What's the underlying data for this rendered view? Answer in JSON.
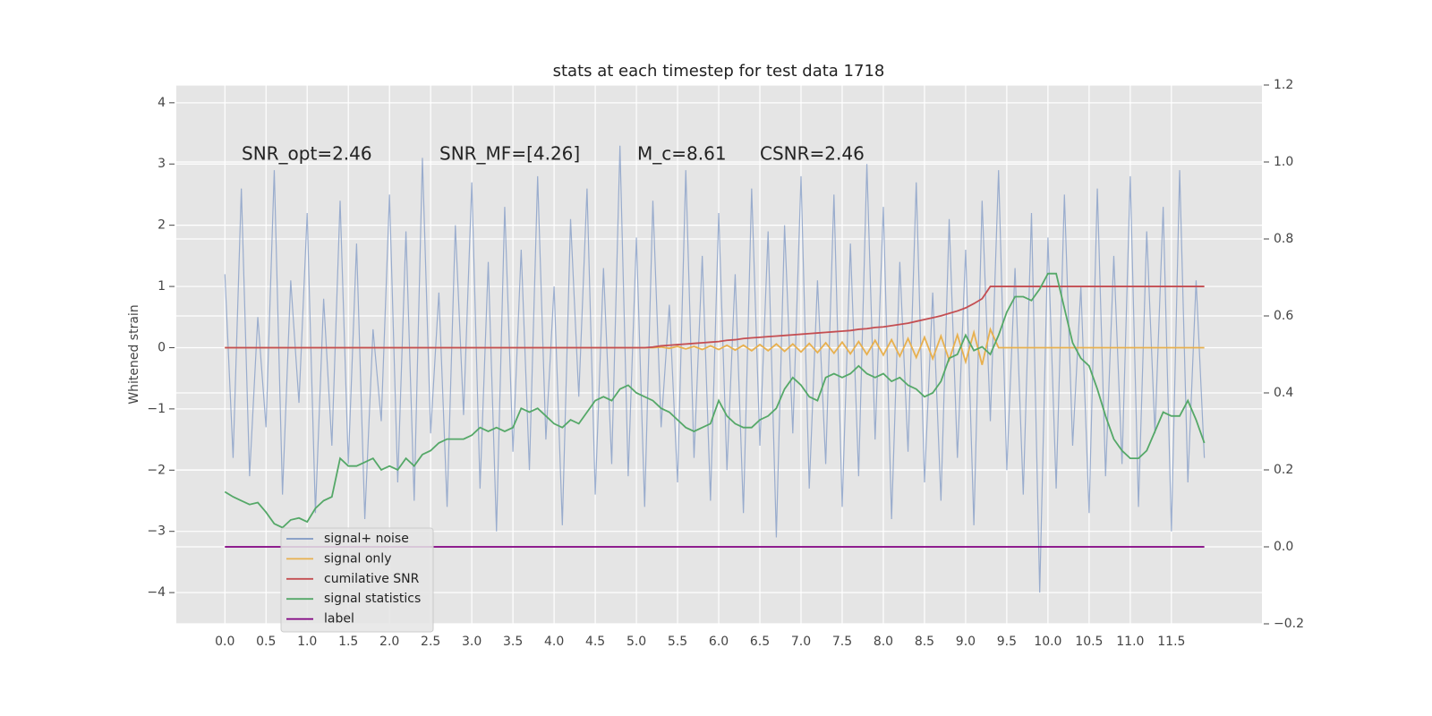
{
  "chart_data": {
    "type": "line",
    "title": "stats at each timestep for test data 1718",
    "ylabel": "Whitened strain",
    "annotations": [
      "SNR_opt=2.46",
      "SNR_MF=[4.26]",
      "M_c=8.61",
      "CSNR=2.46"
    ],
    "grid": true,
    "legend": "lower left",
    "background": "#e5e5e5",
    "xlim": [
      -0.59,
      12.6
    ],
    "ylim": [
      -4.51,
      4.29
    ],
    "y2lim": [
      -0.2,
      1.2
    ],
    "xticks": [
      {
        "value": 0,
        "label": "0.0"
      },
      {
        "value": 0.5,
        "label": "0.5"
      },
      {
        "value": 1,
        "label": "1.0"
      },
      {
        "value": 1.5,
        "label": "1.5"
      },
      {
        "value": 2,
        "label": "2.0"
      },
      {
        "value": 2.5,
        "label": "2.5"
      },
      {
        "value": 3,
        "label": "3.0"
      },
      {
        "value": 3.5,
        "label": "3.5"
      },
      {
        "value": 4,
        "label": "4.0"
      },
      {
        "value": 4.5,
        "label": "4.5"
      },
      {
        "value": 5,
        "label": "5.0"
      },
      {
        "value": 5.5,
        "label": "5.5"
      },
      {
        "value": 6,
        "label": "6.0"
      },
      {
        "value": 6.5,
        "label": "6.5"
      },
      {
        "value": 7,
        "label": "7.0"
      },
      {
        "value": 7.5,
        "label": "7.5"
      },
      {
        "value": 8,
        "label": "8.0"
      },
      {
        "value": 8.5,
        "label": "8.5"
      },
      {
        "value": 9,
        "label": "9.0"
      },
      {
        "value": 9.5,
        "label": "9.5"
      },
      {
        "value": 10,
        "label": "10.0"
      },
      {
        "value": 10.5,
        "label": "10.5"
      },
      {
        "value": 11,
        "label": "11.0"
      },
      {
        "value": 11.5,
        "label": "11.5"
      }
    ],
    "yticks": [
      {
        "value": -4,
        "label": "−4"
      },
      {
        "value": -3,
        "label": "−3"
      },
      {
        "value": -2,
        "label": "−2"
      },
      {
        "value": -1,
        "label": "−1"
      },
      0,
      1,
      2,
      3,
      4
    ],
    "y2ticks": [
      {
        "value": -0.2,
        "label": "−0.2"
      },
      {
        "value": 0,
        "label": "0.0"
      },
      {
        "value": 0.2,
        "label": "0.2"
      },
      {
        "value": 0.4,
        "label": "0.4"
      },
      {
        "value": 0.6,
        "label": "0.6"
      },
      {
        "value": 0.8,
        "label": "0.8"
      },
      {
        "value": 1,
        "label": "1.0"
      },
      {
        "value": 1.2,
        "label": "1.2"
      }
    ],
    "x": [
      0,
      0.1,
      0.2,
      0.3,
      0.4,
      0.5,
      0.6,
      0.7,
      0.8,
      0.9,
      1,
      1.1,
      1.2,
      1.3,
      1.4,
      1.5,
      1.6,
      1.7,
      1.8,
      1.9,
      2,
      2.1,
      2.2,
      2.3,
      2.4,
      2.5,
      2.6,
      2.7,
      2.8,
      2.9,
      3,
      3.1,
      3.2,
      3.3,
      3.4,
      3.5,
      3.6,
      3.7,
      3.8,
      3.9,
      4,
      4.1,
      4.2,
      4.3,
      4.4,
      4.5,
      4.6,
      4.7,
      4.8,
      4.9,
      5,
      5.1,
      5.2,
      5.3,
      5.4,
      5.5,
      5.6,
      5.7,
      5.8,
      5.9,
      6,
      6.1,
      6.2,
      6.3,
      6.4,
      6.5,
      6.6,
      6.7,
      6.8,
      6.9,
      7,
      7.1,
      7.2,
      7.3,
      7.4,
      7.5,
      7.6,
      7.7,
      7.8,
      7.9,
      8,
      8.1,
      8.2,
      8.3,
      8.4,
      8.5,
      8.6,
      8.7,
      8.8,
      8.9,
      9,
      9.1,
      9.2,
      9.3,
      9.4,
      9.5,
      9.6,
      9.7,
      9.8,
      9.9,
      10,
      10.1,
      10.2,
      10.3,
      10.4,
      10.5,
      10.6,
      10.7,
      10.8,
      10.9,
      11,
      11.1,
      11.2,
      11.3,
      11.4,
      11.5,
      11.6,
      11.7,
      11.8,
      11.9
    ],
    "series": [
      {
        "name": "signal+ noise",
        "color": "#7f98c4",
        "values": [
          1.2,
          -1.8,
          2.6,
          -2.1,
          0.5,
          -1.3,
          2.9,
          -2.4,
          1.1,
          -0.9,
          2.2,
          -2.7,
          0.8,
          -1.6,
          2.4,
          -1.9,
          1.7,
          -2.8,
          0.3,
          -1.2,
          2.5,
          -2.2,
          1.9,
          -2.5,
          3.1,
          -1.4,
          0.9,
          -2.6,
          2.0,
          -1.1,
          2.7,
          -2.3,
          1.4,
          -3.0,
          2.3,
          -1.7,
          1.6,
          -2.0,
          2.8,
          -1.5,
          1.0,
          -2.9,
          2.1,
          -0.8,
          2.6,
          -2.4,
          1.3,
          -1.9,
          3.3,
          -2.1,
          1.8,
          -2.6,
          2.4,
          -1.3,
          0.7,
          -2.2,
          2.9,
          -1.8,
          1.5,
          -2.5,
          2.2,
          -2.0,
          1.2,
          -2.7,
          2.6,
          -1.6,
          1.9,
          -3.1,
          2.0,
          -1.4,
          2.8,
          -2.3,
          1.1,
          -1.9,
          2.5,
          -2.6,
          1.7,
          -2.1,
          3.0,
          -1.5,
          2.3,
          -2.8,
          1.4,
          -1.7,
          2.7,
          -2.2,
          0.9,
          -2.5,
          2.1,
          -1.8,
          1.6,
          -2.9,
          2.4,
          -1.2,
          2.9,
          -2.0,
          1.3,
          -2.4,
          2.2,
          -4.0,
          1.8,
          -2.3,
          2.5,
          -1.6,
          1.0,
          -2.7,
          2.6,
          -2.1,
          1.5,
          -1.9,
          2.8,
          -2.6,
          1.9,
          -1.4,
          2.3,
          -3.0,
          2.9,
          -2.2,
          1.1,
          -1.8
        ]
      },
      {
        "name": "signal only",
        "color": "#e8b04e",
        "values": [
          0,
          0,
          0,
          0,
          0,
          0,
          0,
          0,
          0,
          0,
          0,
          0,
          0,
          0,
          0,
          0,
          0,
          0,
          0,
          0,
          0,
          0,
          0,
          0,
          0,
          0,
          0,
          0,
          0,
          0,
          0,
          0,
          0,
          0,
          0,
          0,
          0,
          0,
          0,
          0,
          0,
          0,
          0,
          0,
          0,
          0,
          0,
          0,
          0,
          0,
          0,
          0,
          0,
          0.01,
          -0.01,
          0.02,
          -0.02,
          0.02,
          -0.03,
          0.03,
          -0.03,
          0.04,
          -0.04,
          0.04,
          -0.05,
          0.05,
          -0.05,
          0.06,
          -0.06,
          0.06,
          -0.07,
          0.07,
          -0.08,
          0.08,
          -0.09,
          0.09,
          -0.1,
          0.1,
          -0.11,
          0.12,
          -0.12,
          0.13,
          -0.14,
          0.15,
          -0.16,
          0.17,
          -0.18,
          0.19,
          -0.2,
          0.21,
          -0.23,
          0.25,
          -0.28,
          0.3,
          0,
          0,
          0,
          0,
          0,
          0,
          0,
          0,
          0,
          0,
          0,
          0,
          0,
          0,
          0,
          0,
          0,
          0,
          0,
          0,
          0,
          0,
          0,
          0,
          0,
          0
        ]
      },
      {
        "name": "cumilative SNR",
        "color": "#c44e52",
        "values": [
          0,
          0,
          0,
          0,
          0,
          0,
          0,
          0,
          0,
          0,
          0,
          0,
          0,
          0,
          0,
          0,
          0,
          0,
          0,
          0,
          0,
          0,
          0,
          0,
          0,
          0,
          0,
          0,
          0,
          0,
          0,
          0,
          0,
          0,
          0,
          0,
          0,
          0,
          0,
          0,
          0,
          0,
          0,
          0,
          0,
          0,
          0,
          0,
          0,
          0,
          0,
          0,
          0.01,
          0.03,
          0.04,
          0.05,
          0.06,
          0.07,
          0.08,
          0.09,
          0.1,
          0.12,
          0.13,
          0.15,
          0.16,
          0.17,
          0.18,
          0.19,
          0.2,
          0.21,
          0.22,
          0.23,
          0.24,
          0.25,
          0.26,
          0.27,
          0.28,
          0.3,
          0.31,
          0.33,
          0.34,
          0.36,
          0.38,
          0.4,
          0.43,
          0.46,
          0.49,
          0.52,
          0.56,
          0.6,
          0.65,
          0.72,
          0.8,
          1.0,
          1,
          1,
          1,
          1,
          1,
          1,
          1,
          1,
          1,
          1,
          1,
          1,
          1,
          1,
          1,
          1,
          1,
          1,
          1,
          1,
          1,
          1,
          1,
          1,
          1,
          1
        ]
      },
      {
        "name": "signal statistics",
        "color": "#55a868",
        "axis": "y2",
        "values": [
          0.143,
          0.13,
          0.12,
          0.11,
          0.115,
          0.09,
          0.06,
          0.05,
          0.07,
          0.075,
          0.065,
          0.1,
          0.12,
          0.13,
          0.23,
          0.21,
          0.21,
          0.22,
          0.23,
          0.2,
          0.21,
          0.2,
          0.23,
          0.21,
          0.24,
          0.25,
          0.27,
          0.28,
          0.28,
          0.28,
          0.29,
          0.31,
          0.3,
          0.31,
          0.3,
          0.31,
          0.36,
          0.35,
          0.36,
          0.34,
          0.32,
          0.31,
          0.33,
          0.32,
          0.35,
          0.38,
          0.39,
          0.38,
          0.41,
          0.42,
          0.4,
          0.39,
          0.38,
          0.36,
          0.35,
          0.33,
          0.31,
          0.3,
          0.31,
          0.32,
          0.38,
          0.34,
          0.32,
          0.31,
          0.31,
          0.33,
          0.34,
          0.36,
          0.41,
          0.44,
          0.42,
          0.39,
          0.38,
          0.44,
          0.45,
          0.44,
          0.45,
          0.47,
          0.45,
          0.44,
          0.45,
          0.43,
          0.44,
          0.42,
          0.41,
          0.39,
          0.4,
          0.43,
          0.49,
          0.5,
          0.55,
          0.51,
          0.52,
          0.5,
          0.55,
          0.61,
          0.65,
          0.65,
          0.64,
          0.67,
          0.71,
          0.71,
          0.62,
          0.53,
          0.49,
          0.47,
          0.41,
          0.34,
          0.28,
          0.25,
          0.23,
          0.23,
          0.25,
          0.3,
          0.35,
          0.34,
          0.34,
          0.38,
          0.33,
          0.27
        ]
      },
      {
        "name": "label",
        "color": "#800080",
        "axis": "y2",
        "values": [
          0,
          0,
          0,
          0,
          0,
          0,
          0,
          0,
          0,
          0,
          0,
          0,
          0,
          0,
          0,
          0,
          0,
          0,
          0,
          0,
          0,
          0,
          0,
          0,
          0,
          0,
          0,
          0,
          0,
          0,
          0,
          0,
          0,
          0,
          0,
          0,
          0,
          0,
          0,
          0,
          0,
          0,
          0,
          0,
          0,
          0,
          0,
          0,
          0,
          0,
          0,
          0,
          0,
          0,
          0,
          0,
          0,
          0,
          0,
          0,
          0,
          0,
          0,
          0,
          0,
          0,
          0,
          0,
          0,
          0,
          0,
          0,
          0,
          0,
          0,
          0,
          0,
          0,
          0,
          0,
          0,
          0,
          0,
          0,
          0,
          0,
          0,
          0,
          0,
          0,
          0,
          0,
          0,
          0,
          0,
          0,
          0,
          0,
          0,
          0,
          0,
          0,
          0,
          0,
          0,
          0,
          0,
          0,
          0,
          0,
          0,
          0,
          0,
          0,
          0,
          0,
          0,
          0,
          0,
          0
        ]
      }
    ]
  }
}
